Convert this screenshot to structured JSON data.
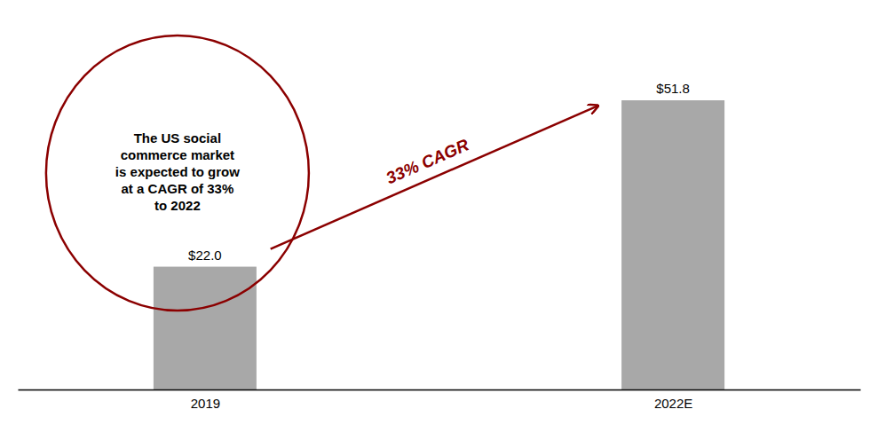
{
  "chart_data": {
    "type": "bar",
    "categories": [
      "2019",
      "2022E"
    ],
    "values": [
      22.0,
      51.8
    ],
    "value_labels": [
      "$22.0",
      "$51.8"
    ],
    "data_labels": true,
    "color": "#a8a8a8",
    "ylim": [
      0,
      65
    ],
    "tick_labels": "x",
    "annotations": [
      {
        "text": "33% CAGR",
        "color": "#8B0000"
      },
      {
        "text": "The US social\ncommerce market\nis expected to grow\nat a CAGR of 33%\nto 2022",
        "color": "#8B0000"
      }
    ]
  }
}
